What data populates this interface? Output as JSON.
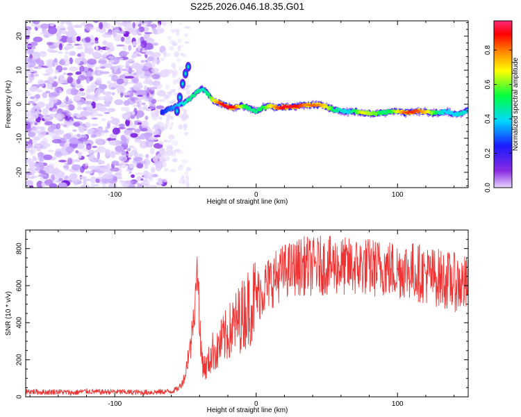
{
  "chart_data": [
    {
      "type": "heatmap",
      "title": "S225.2026.046.18.35.G01",
      "xlabel": "Height of straight line (km)",
      "ylabel": "Frequency (Hz)",
      "xlim": [
        -163,
        150
      ],
      "ylim": [
        -24.5,
        24.5
      ],
      "xticks": [
        -100,
        0,
        100
      ],
      "xtick_labels": [
        "-100",
        "0",
        "100"
      ],
      "yticks": [
        -20,
        -10,
        0,
        10,
        20
      ],
      "ytick_labels": [
        "-20",
        "-10",
        "0",
        "10",
        "20"
      ],
      "noise_region_x": [
        -163,
        -65
      ],
      "ridge": {
        "x": [
          -67,
          -62,
          -58,
          -54,
          -50,
          -46,
          -42,
          -38,
          -34,
          -30,
          -25,
          -20,
          -15,
          -10,
          -5,
          0,
          5,
          10,
          15,
          20,
          25,
          30,
          35,
          40,
          45,
          50,
          55,
          60,
          65,
          70,
          75,
          80,
          85,
          90,
          95,
          100,
          105,
          110,
          115,
          120,
          125,
          130,
          135,
          140,
          145,
          150
        ],
        "y": [
          -2.5,
          -1.5,
          -1.0,
          0.0,
          0.5,
          2.0,
          3.5,
          4.5,
          3.0,
          1.0,
          0.2,
          -0.8,
          -1.0,
          -0.5,
          -1.2,
          -2.0,
          -1.0,
          -0.5,
          -1.0,
          -0.8,
          -0.8,
          -0.5,
          -0.2,
          -0.3,
          -0.2,
          -0.8,
          -1.6,
          -2.0,
          -2.3,
          -2.0,
          -2.5,
          -2.6,
          -2.8,
          -2.4,
          -2.2,
          -2.0,
          -2.5,
          -2.2,
          -2.0,
          -2.2,
          -2.6,
          -2.4,
          -2.1,
          -3.0,
          -2.8,
          -1.8
        ],
        "amplitude": [
          0.25,
          0.3,
          0.35,
          0.4,
          0.45,
          0.5,
          0.5,
          0.45,
          0.5,
          0.7,
          0.9,
          0.95,
          0.9,
          0.6,
          0.5,
          0.5,
          0.55,
          0.7,
          0.85,
          0.95,
          0.95,
          0.9,
          0.8,
          0.85,
          0.8,
          0.7,
          0.5,
          0.45,
          0.4,
          0.55,
          0.7,
          0.65,
          0.6,
          0.5,
          0.55,
          0.7,
          0.85,
          0.9,
          0.85,
          0.75,
          0.6,
          0.45,
          0.4,
          0.4,
          0.45,
          0.4
        ]
      },
      "spike": {
        "x": [
          -56,
          -54,
          -52,
          -50,
          -48
        ],
        "y": [
          -2,
          2,
          6,
          9,
          11
        ]
      },
      "colorbar": {
        "label": "Normalized spectral amplitude",
        "range": [
          0,
          0.97
        ],
        "ticks": [
          0,
          0.2,
          0.4,
          0.6,
          0.8
        ],
        "tick_labels": [
          "0.0",
          "0.2",
          "0.4",
          "0.6",
          "0.8"
        ]
      }
    },
    {
      "type": "line",
      "xlabel": "Height of straight line (km)",
      "ylabel": "SNR (10 * v/v)",
      "xlim": [
        -163,
        150
      ],
      "ylim": [
        0,
        900
      ],
      "xticks": [
        -100,
        0,
        100
      ],
      "xtick_labels": [
        "-100",
        "0",
        "100"
      ],
      "yticks": [
        0,
        200,
        400,
        600,
        800
      ],
      "ytick_labels": [
        "0",
        "200",
        "400",
        "600",
        "800"
      ],
      "series": [
        {
          "name": "SNR",
          "color": "#ef3333",
          "x": [
            -163,
            -150,
            -140,
            -130,
            -120,
            -110,
            -100,
            -90,
            -80,
            -70,
            -60,
            -55,
            -52,
            -50,
            -48,
            -46,
            -44,
            -42,
            -41,
            -40,
            -39,
            -38,
            -36,
            -34,
            -32,
            -30,
            -28,
            -26,
            -24,
            -22,
            -20,
            -18,
            -16,
            -14,
            -12,
            -10,
            -8,
            -6,
            -4,
            -2,
            0,
            5,
            10,
            15,
            20,
            25,
            30,
            35,
            40,
            45,
            50,
            55,
            60,
            65,
            70,
            75,
            80,
            85,
            90,
            95,
            100,
            105,
            110,
            115,
            120,
            125,
            130,
            135,
            140,
            145,
            150
          ],
          "values": [
            30,
            25,
            28,
            22,
            30,
            26,
            28,
            25,
            24,
            26,
            30,
            45,
            80,
            120,
            230,
            280,
            420,
            560,
            650,
            320,
            250,
            200,
            150,
            180,
            220,
            260,
            230,
            280,
            300,
            320,
            340,
            360,
            380,
            400,
            420,
            440,
            460,
            480,
            500,
            520,
            540,
            580,
            620,
            650,
            680,
            690,
            700,
            710,
            700,
            710,
            705,
            710,
            705,
            700,
            700,
            705,
            700,
            695,
            700,
            690,
            680,
            690,
            680,
            670,
            660,
            650,
            640,
            630,
            620,
            610,
            600
          ]
        }
      ]
    }
  ]
}
